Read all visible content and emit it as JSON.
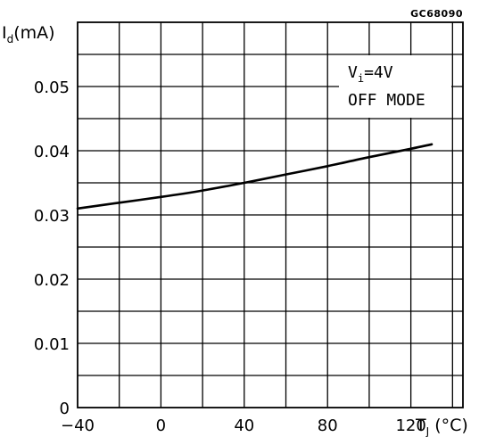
{
  "figure_code": "GC68090",
  "chart_data": {
    "type": "line",
    "xlabel_main": "T",
    "xlabel_sub": "J",
    "xlabel_unit": " (°C)",
    "ylabel_main": "I",
    "ylabel_sub": "d",
    "ylabel_unit": "(mA)",
    "xlim": [
      -40,
      145
    ],
    "ylim": [
      0,
      0.06
    ],
    "x_grid_step": 20,
    "y_grid_step": 0.005,
    "x_ticks": [
      -40,
      0,
      40,
      80,
      120
    ],
    "x_tick_labels": [
      "−40",
      "0",
      "40",
      "80",
      "120"
    ],
    "y_ticks": [
      0,
      0.01,
      0.02,
      0.03,
      0.04,
      0.05
    ],
    "y_tick_labels": [
      "0",
      "0.01",
      "0.02",
      "0.03",
      "0.04",
      "0.05"
    ],
    "grid": true,
    "annotation": {
      "line1_main": "V",
      "line1_sub": "i",
      "line1_rest": "=4V",
      "line2": "OFF MODE"
    },
    "series": [
      {
        "x": [
          -40,
          -20,
          0,
          20,
          40,
          60,
          80,
          100,
          120,
          130
        ],
        "y": [
          0.031,
          0.0319,
          0.0328,
          0.0338,
          0.035,
          0.0363,
          0.0376,
          0.039,
          0.0403,
          0.041
        ]
      }
    ]
  }
}
